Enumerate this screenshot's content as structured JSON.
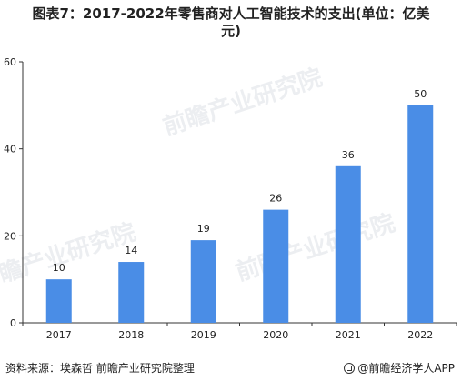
{
  "header": {
    "title_line1": "图表7：2017-2022年零售商对人工智能技术的支出(单位：亿美",
    "title_line2": "元)"
  },
  "footer": {
    "source": "资料来源：埃森哲 前瞻产业研究院整理",
    "brand": "@前瞻经济学人APP"
  },
  "watermark": {
    "text": "前瞻产业研究院"
  },
  "colors": {
    "bar": "#4a8de6",
    "axis": "#333333",
    "text": "#222222"
  },
  "chart_data": {
    "type": "bar",
    "title": "图表7：2017-2022年零售商对人工智能技术的支出(单位：亿美元)",
    "categories": [
      "2017",
      "2018",
      "2019",
      "2020",
      "2021",
      "2022"
    ],
    "values": [
      10,
      14,
      19,
      26,
      36,
      50
    ],
    "data_labels": [
      "10",
      "14",
      "19",
      "26",
      "36",
      "50"
    ],
    "xlabel": "",
    "ylabel": "",
    "ylim": [
      0,
      60
    ],
    "yticks": [
      0,
      20,
      40,
      60
    ],
    "grid": false,
    "legend": "none"
  }
}
